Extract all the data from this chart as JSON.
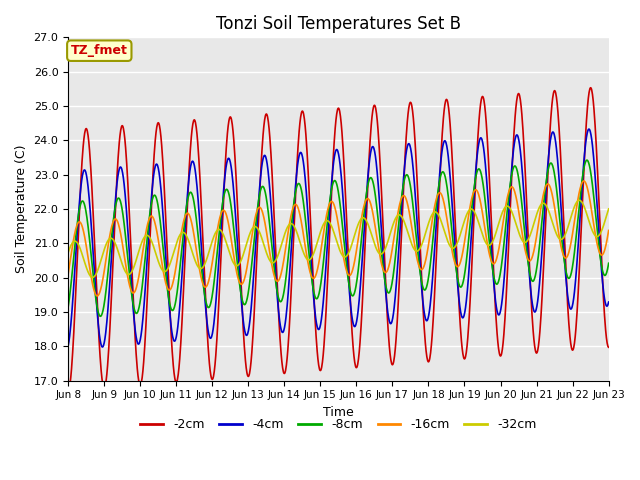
{
  "title": "Tonzi Soil Temperatures Set B",
  "xlabel": "Time",
  "ylabel": "Soil Temperature (C)",
  "ylim": [
    17.0,
    27.0
  ],
  "yticks": [
    17.0,
    18.0,
    19.0,
    20.0,
    21.0,
    22.0,
    23.0,
    24.0,
    25.0,
    26.0,
    27.0
  ],
  "xtick_labels": [
    "Jun 8",
    "Jun 9",
    "Jun 10",
    "Jun 11",
    "Jun 12",
    "Jun 13",
    "Jun 14",
    "Jun 15",
    "Jun 16",
    "Jun 17",
    "Jun 18",
    "Jun 19",
    "Jun 20",
    "Jun 21",
    "Jun 22",
    "Jun 23"
  ],
  "legend_labels": [
    "-2cm",
    "-4cm",
    "-8cm",
    "-16cm",
    "-32cm"
  ],
  "legend_colors": [
    "#cc0000",
    "#0000cc",
    "#00aa00",
    "#ff8800",
    "#cccc00"
  ],
  "annotation_text": "TZ_fmet",
  "annotation_bg": "#ffffcc",
  "annotation_border": "#999900",
  "bg_color": "#e8e8e8",
  "grid_color": "#ffffff",
  "line_width": 1.2,
  "n_points": 1440,
  "start_day": 8,
  "end_day": 23,
  "base_temp": 20.5,
  "amplitude_2cm": 3.8,
  "amplitude_4cm": 2.6,
  "amplitude_8cm": 1.7,
  "amplitude_16cm": 1.1,
  "amplitude_32cm": 0.55,
  "phase_shift_4cm": 0.3,
  "phase_shift_8cm": 0.65,
  "phase_shift_16cm": 1.2,
  "phase_shift_32cm": 2.0,
  "trend": 0.085
}
